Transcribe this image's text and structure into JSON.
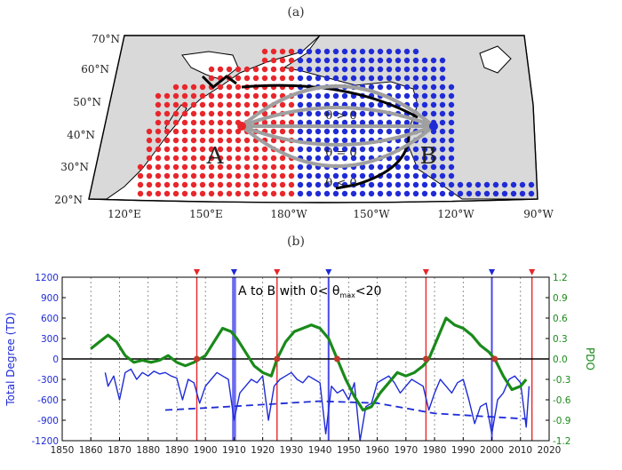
{
  "panel_a": {
    "label": "(a)",
    "lat_labels": [
      "70°N",
      "60°N",
      "50°N",
      "40°N",
      "30°N",
      "20°N"
    ],
    "lon_labels": [
      "120°E",
      "150°E",
      "180°W",
      "150°W",
      "120°W",
      "90°W"
    ],
    "point_a": "A",
    "point_b": "B",
    "theta_labels": [
      "θ > 0",
      "θ = 0",
      "θ < 0"
    ],
    "colors": {
      "land": "#d9d9d9",
      "positive_dot": "#e8262b",
      "negative_dot": "#1f2bd6",
      "arc": "#a0a0a0"
    }
  },
  "panel_b": {
    "label": "(b)",
    "annotation": "A to B with 0< θ",
    "annotation_sub": "max",
    "annotation_tail": "<20"
  },
  "chart_data": {
    "type": "line",
    "xlabel": "",
    "ylabel": "Total Degree (TD)",
    "y2label": "PDO",
    "xlim": [
      1850,
      2020
    ],
    "ylim": [
      -1200,
      1200
    ],
    "y2lim": [
      -1.2,
      1.2
    ],
    "x_ticks": [
      1850,
      1860,
      1870,
      1880,
      1890,
      1900,
      1910,
      1920,
      1930,
      1940,
      1950,
      1960,
      1970,
      1980,
      1990,
      2000,
      2010,
      2020
    ],
    "y_ticks": [
      -1200,
      -900,
      -600,
      -300,
      0,
      300,
      600,
      900,
      1200
    ],
    "y2_ticks": [
      -1.2,
      -0.9,
      -0.6,
      -0.3,
      0.0,
      0.3,
      0.6,
      0.9,
      1.2
    ],
    "grid": "vertical-dotted",
    "red_events": [
      1897,
      1925,
      1977,
      2014
    ],
    "blue_events": [
      1910,
      1943,
      2000
    ],
    "pdo_zero_crossings": [
      1897,
      1925,
      1946,
      1977,
      2001
    ],
    "series": [
      {
        "axis": "left",
        "color": "#1f2bd6",
        "x": [
          1865,
          1866,
          1868,
          1870,
          1872,
          1874,
          1876,
          1878,
          1880,
          1882,
          1884,
          1886,
          1888,
          1890,
          1892,
          1894,
          1896,
          1898,
          1900,
          1902,
          1904,
          1906,
          1908,
          1910,
          1912,
          1914,
          1916,
          1918,
          1920,
          1922,
          1924,
          1926,
          1928,
          1930,
          1932,
          1934,
          1936,
          1938,
          1940,
          1942,
          1944,
          1946,
          1948,
          1950,
          1952,
          1954,
          1956,
          1958,
          1960,
          1962,
          1964,
          1966,
          1968,
          1970,
          1972,
          1974,
          1976,
          1978,
          1980,
          1982,
          1984,
          1986,
          1988,
          1990,
          1992,
          1994,
          1996,
          1998,
          2000,
          2002,
          2004,
          2006,
          2008,
          2010,
          2012,
          2013
        ],
        "values": [
          -200,
          -400,
          -250,
          -600,
          -200,
          -150,
          -300,
          -200,
          -250,
          -180,
          -220,
          -200,
          -250,
          -280,
          -600,
          -300,
          -350,
          -650,
          -400,
          -300,
          -200,
          -250,
          -300,
          -900,
          -500,
          -400,
          -300,
          -350,
          -250,
          -900,
          -400,
          -300,
          -250,
          -200,
          -300,
          -350,
          -250,
          -300,
          -350,
          -1100,
          -400,
          -500,
          -450,
          -600,
          -350,
          -1200,
          -700,
          -650,
          -350,
          -300,
          -250,
          -350,
          -500,
          -400,
          -300,
          -350,
          -400,
          -750,
          -500,
          -300,
          -400,
          -500,
          -350,
          -300,
          -600,
          -950,
          -700,
          -650,
          -1100,
          -600,
          -500,
          -300,
          -250,
          -350,
          -1000,
          -400
        ]
      },
      {
        "axis": "left",
        "color": "#1f2bd6",
        "style": "dashed",
        "x": [
          1886,
          1900,
          1920,
          1940,
          1960,
          1980,
          2000,
          2012
        ],
        "values": [
          -750,
          -720,
          -670,
          -620,
          -650,
          -800,
          -850,
          -880
        ]
      },
      {
        "axis": "right",
        "color": "#1a8a1a",
        "x": [
          1860,
          1863,
          1866,
          1869,
          1872,
          1875,
          1878,
          1881,
          1884,
          1887,
          1890,
          1893,
          1896,
          1898,
          1900,
          1903,
          1906,
          1909,
          1911,
          1914,
          1917,
          1920,
          1923,
          1925,
          1928,
          1931,
          1934,
          1937,
          1940,
          1943,
          1946,
          1949,
          1952,
          1955,
          1958,
          1961,
          1964,
          1967,
          1970,
          1973,
          1976,
          1978,
          1981,
          1984,
          1987,
          1990,
          1993,
          1996,
          1999,
          2001,
          2004,
          2007,
          2010,
          2012
        ],
        "values": [
          0.15,
          0.25,
          0.35,
          0.25,
          0.05,
          -0.05,
          -0.02,
          -0.05,
          -0.02,
          0.05,
          -0.05,
          -0.1,
          -0.05,
          0.0,
          0.05,
          0.25,
          0.45,
          0.4,
          0.3,
          0.1,
          -0.1,
          -0.2,
          -0.25,
          0.0,
          0.25,
          0.4,
          0.45,
          0.5,
          0.45,
          0.3,
          0.0,
          -0.3,
          -0.55,
          -0.75,
          -0.7,
          -0.5,
          -0.35,
          -0.2,
          -0.25,
          -0.2,
          -0.1,
          0.0,
          0.3,
          0.6,
          0.5,
          0.45,
          0.35,
          0.2,
          0.1,
          0.0,
          -0.25,
          -0.45,
          -0.4,
          -0.3
        ]
      }
    ]
  }
}
